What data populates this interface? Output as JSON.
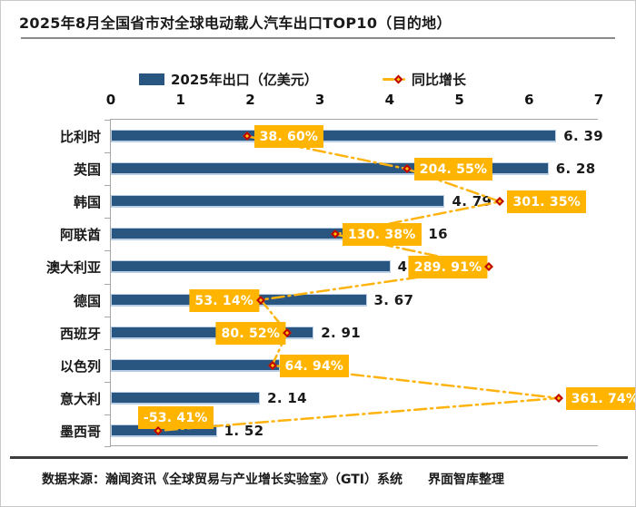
{
  "title": "2025年8月全国省市对全球电动载人汽车出口TOP10（目的地）",
  "legend": {
    "bars_label": "2025年出口（亿美元）",
    "growth_label": "同比增长"
  },
  "footer": {
    "source": "数据来源：瀚闻资讯《全球贸易与产业增长实验室》（GTI）系统",
    "credit": "界面智库整理"
  },
  "colors": {
    "bar": "#295680",
    "badge": "#FFB400",
    "diamond_fill": "#FFC000",
    "diamond_border": "#BF0000",
    "dash_line": "#FFB30E",
    "axis": "#A6A6A6"
  },
  "chart_data": {
    "type": "bar",
    "orientation": "horizontal",
    "title": "2025年8月全国省市对全球电动载人汽车出口TOP10（目的地）",
    "categories": [
      "比利时",
      "英国",
      "韩国",
      "阿联酋",
      "澳大利亚",
      "德国",
      "西班牙",
      "以色列",
      "意大利",
      "墨西哥"
    ],
    "series": [
      {
        "name": "2025年出口（亿美元）",
        "type": "bar",
        "values": [
          6.39,
          6.28,
          4.79,
          4.16,
          4.01,
          3.67,
          2.91,
          2.43,
          2.14,
          1.52
        ]
      },
      {
        "name": "同比增长",
        "type": "line",
        "unit": "%",
        "values": [
          38.6,
          204.55,
          301.35,
          130.38,
          289.91,
          53.14,
          80.52,
          64.94,
          361.74,
          -53.41
        ]
      }
    ],
    "xlabel": "",
    "ylabel": "",
    "xlim": [
      0,
      7
    ],
    "x_ticks": [
      "0",
      "1",
      "2",
      "3",
      "4",
      "5",
      "6",
      "7"
    ],
    "grid": false,
    "legend_position": "top"
  },
  "rows": [
    {
      "name": "比利时",
      "value": 6.39,
      "value_label": "6. 39",
      "growth": 38.6,
      "growth_label": "38. 60%",
      "badge_side": "right"
    },
    {
      "name": "英国",
      "value": 6.28,
      "value_label": "6. 28",
      "growth": 204.55,
      "growth_label": "204. 55%",
      "badge_side": "right"
    },
    {
      "name": "韩国",
      "value": 4.79,
      "value_label": "4. 79",
      "growth": 301.35,
      "growth_label": "301. 35%",
      "badge_side": "right"
    },
    {
      "name": "阿联酋",
      "value": 4.16,
      "value_label": "4. 16",
      "growth": 130.38,
      "growth_label": "130. 38%",
      "badge_side": "right"
    },
    {
      "name": "澳大利亚",
      "value": 4.01,
      "value_label": "4. 01",
      "growth": 289.91,
      "growth_label": "289. 91%",
      "badge_side": "left"
    },
    {
      "name": "德国",
      "value": 3.67,
      "value_label": "3. 67",
      "growth": 53.14,
      "growth_label": "53. 14%",
      "badge_side": "left"
    },
    {
      "name": "西班牙",
      "value": 2.91,
      "value_label": "2. 91",
      "growth": 80.52,
      "growth_label": "80. 52%",
      "badge_side": "left"
    },
    {
      "name": "以色列",
      "value": 2.43,
      "value_label": "",
      "growth": 64.94,
      "growth_label": "64. 94%",
      "badge_side": "right"
    },
    {
      "name": "意大利",
      "value": 2.14,
      "value_label": "2. 14",
      "growth": 361.74,
      "growth_label": "361. 74%",
      "badge_side": "right"
    },
    {
      "name": "墨西哥",
      "value": 1.52,
      "value_label": "1. 52",
      "growth": -53.41,
      "growth_label": "-53. 41%",
      "badge_side": "above"
    }
  ]
}
